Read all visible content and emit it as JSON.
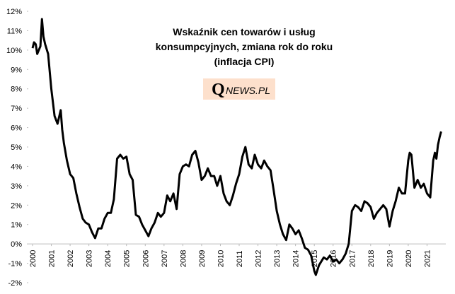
{
  "chart_data": {
    "type": "line",
    "title": [
      "Wskaźnik cen towarów i usług",
      "konsumpcyjnych,  zmiana rok do roku",
      "(inflacja  CPI)"
    ],
    "brand": [
      "Q",
      "NEWS.PL"
    ],
    "xlim": [
      2000,
      2022
    ],
    "xticks": [
      2000,
      2001,
      2002,
      2003,
      2004,
      2005,
      2006,
      2007,
      2008,
      2009,
      2010,
      2011,
      2012,
      2013,
      2014,
      2015,
      2016,
      2017,
      2018,
      2019,
      2020,
      2021
    ],
    "ylim": [
      -2,
      12
    ],
    "yticks": [
      {
        "value": -2,
        "label": "-2%"
      },
      {
        "value": -1,
        "label": "-1%"
      },
      {
        "value": 0,
        "label": "0%"
      },
      {
        "value": 1,
        "label": "1%"
      },
      {
        "value": 2,
        "label": "2%"
      },
      {
        "value": 3,
        "label": "3%"
      },
      {
        "value": 4,
        "label": "4%"
      },
      {
        "value": 5,
        "label": "5%"
      },
      {
        "value": 6,
        "label": "6%"
      },
      {
        "value": 7,
        "label": "7%"
      },
      {
        "value": 8,
        "label": "8%"
      },
      {
        "value": 9,
        "label": "9%"
      },
      {
        "value": 10,
        "label": "10%"
      },
      {
        "value": 11,
        "label": "11%"
      },
      {
        "value": 12,
        "label": "12%"
      }
    ],
    "grid": false,
    "series": [
      {
        "color": "#000000",
        "x": [
          2000.0,
          2000.08,
          2000.17,
          2000.25,
          2000.42,
          2000.5,
          2000.58,
          2000.67,
          2000.83,
          2001.0,
          2001.17,
          2001.33,
          2001.5,
          2001.58,
          2001.67,
          2001.83,
          2002.0,
          2002.17,
          2002.33,
          2002.5,
          2002.67,
          2002.83,
          2003.0,
          2003.17,
          2003.33,
          2003.5,
          2003.67,
          2003.83,
          2004.0,
          2004.17,
          2004.33,
          2004.5,
          2004.67,
          2004.83,
          2005.0,
          2005.17,
          2005.33,
          2005.5,
          2005.67,
          2005.83,
          2006.0,
          2006.17,
          2006.33,
          2006.5,
          2006.67,
          2006.83,
          2007.0,
          2007.17,
          2007.33,
          2007.5,
          2007.67,
          2007.83,
          2008.0,
          2008.17,
          2008.33,
          2008.5,
          2008.67,
          2008.83,
          2009.0,
          2009.17,
          2009.33,
          2009.5,
          2009.67,
          2009.83,
          2010.0,
          2010.17,
          2010.33,
          2010.5,
          2010.67,
          2010.83,
          2011.0,
          2011.17,
          2011.33,
          2011.5,
          2011.67,
          2011.83,
          2012.0,
          2012.17,
          2012.33,
          2012.5,
          2012.67,
          2012.83,
          2013.0,
          2013.17,
          2013.33,
          2013.5,
          2013.67,
          2013.83,
          2014.0,
          2014.17,
          2014.33,
          2014.5,
          2014.67,
          2014.83,
          2015.0,
          2015.08,
          2015.25,
          2015.5,
          2015.67,
          2015.83,
          2016.0,
          2016.17,
          2016.33,
          2016.5,
          2016.67,
          2016.83,
          2017.0,
          2017.17,
          2017.33,
          2017.5,
          2017.67,
          2017.83,
          2018.0,
          2018.17,
          2018.33,
          2018.5,
          2018.67,
          2018.83,
          2019.0,
          2019.17,
          2019.33,
          2019.5,
          2019.67,
          2019.83,
          2020.0,
          2020.08,
          2020.17,
          2020.33,
          2020.5,
          2020.67,
          2020.83,
          2021.0,
          2021.17,
          2021.33,
          2021.42,
          2021.5,
          2021.58,
          2021.67,
          2021.75
        ],
        "values": [
          10.1,
          10.4,
          10.3,
          9.8,
          10.2,
          11.6,
          10.7,
          10.3,
          9.8,
          8.0,
          6.6,
          6.2,
          6.9,
          5.9,
          5.2,
          4.3,
          3.6,
          3.4,
          2.6,
          1.9,
          1.3,
          1.1,
          1.0,
          0.6,
          0.3,
          0.8,
          0.8,
          1.3,
          1.6,
          1.6,
          2.3,
          4.4,
          4.6,
          4.4,
          4.5,
          3.6,
          3.3,
          1.5,
          1.4,
          1.0,
          0.7,
          0.4,
          0.8,
          1.1,
          1.6,
          1.4,
          1.6,
          2.5,
          2.2,
          2.6,
          1.8,
          3.6,
          4.0,
          4.1,
          4.0,
          4.6,
          4.8,
          4.2,
          3.3,
          3.5,
          3.9,
          3.5,
          3.5,
          3.0,
          3.5,
          2.6,
          2.2,
          2.0,
          2.5,
          3.1,
          3.6,
          4.5,
          5.0,
          4.1,
          3.9,
          4.6,
          4.1,
          3.9,
          4.3,
          4.0,
          3.8,
          2.8,
          1.7,
          1.0,
          0.5,
          0.2,
          1.0,
          0.8,
          0.5,
          0.7,
          0.3,
          -0.2,
          -0.3,
          -0.6,
          -1.4,
          -1.6,
          -1.1,
          -0.7,
          -0.8,
          -0.6,
          -0.9,
          -0.8,
          -1.0,
          -0.8,
          -0.5,
          0.0,
          1.7,
          2.0,
          1.9,
          1.7,
          2.2,
          2.1,
          1.9,
          1.3,
          1.6,
          1.8,
          2.0,
          1.8,
          0.9,
          1.7,
          2.2,
          2.9,
          2.6,
          2.6,
          4.3,
          4.7,
          4.6,
          2.9,
          3.3,
          2.9,
          3.1,
          2.6,
          2.4,
          4.3,
          4.7,
          4.4,
          5.1,
          5.5,
          5.8
        ]
      }
    ]
  }
}
